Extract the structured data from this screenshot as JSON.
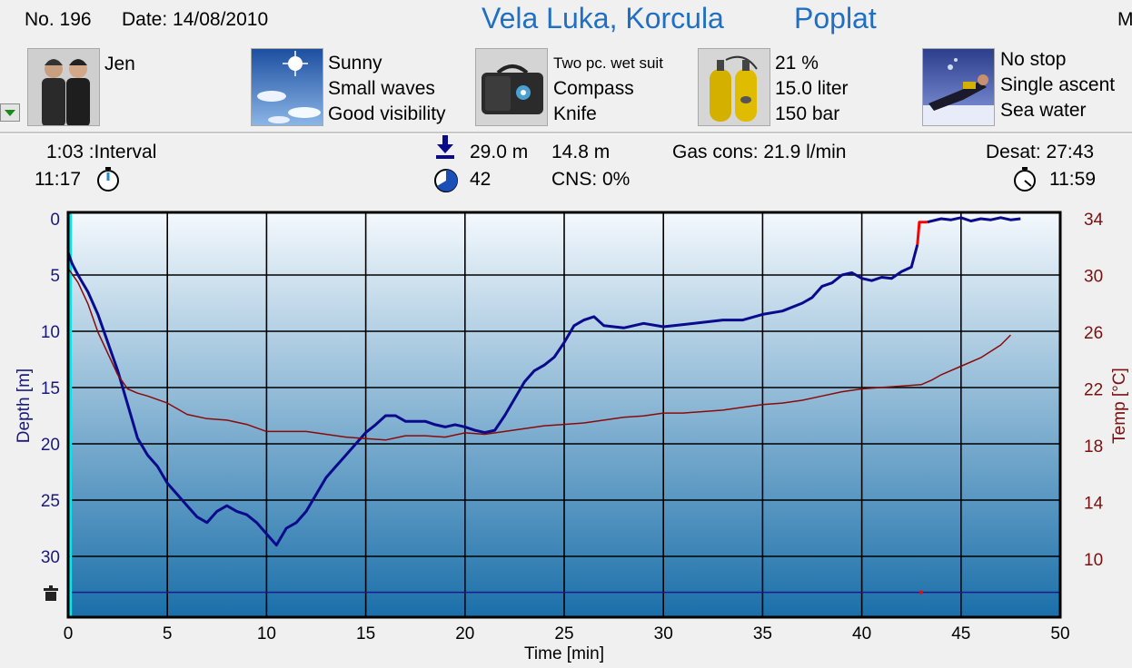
{
  "header": {
    "dive_no": "No. 196",
    "date": "Date: 14/08/2010",
    "location": "Vela Luka, Korcula",
    "site": "Poplat",
    "cut_off": "M"
  },
  "info": {
    "buddy": {
      "icon": "divers-icon",
      "lines": [
        "Jen"
      ]
    },
    "conditions": {
      "icon": "weather-icon",
      "lines": [
        "Sunny",
        "Small waves",
        "Good visibility"
      ]
    },
    "equipment": {
      "icon": "gear-bag-icon",
      "lines": [
        "Two pc. wet suit",
        "Compass",
        "Knife"
      ]
    },
    "gas": {
      "icon": "tanks-icon",
      "lines": [
        "21 %",
        "15.0 liter",
        "150 bar"
      ]
    },
    "dive_type": {
      "icon": "diver-icon",
      "lines": [
        "No stop",
        "Single ascent",
        "Sea water"
      ]
    }
  },
  "stats": {
    "interval": "1:03 :Interval",
    "entry_time": "11:17",
    "max_depth": "29.0 m",
    "avg_depth": "14.8 m",
    "gas_cons": "Gas cons: 21.9 l/min",
    "desat": "Desat:  27:43",
    "dive_time": "42",
    "cns": "CNS:  0%",
    "exit_time": "11:59"
  },
  "colors": {
    "depth": "#0a0a8c",
    "temp": "#8a0a0a",
    "ascent_warning": "#ff0000",
    "surface_marker": "#00e8f0",
    "header_blue": "#1f6fc4",
    "plot_top": "#f4f9fd",
    "plot_bottom": "#1a6fa9"
  },
  "chart_data": {
    "type": "line",
    "xlabel": "Time [min]",
    "ylabel": "Depth [m]",
    "y2label": "Temp [°C]",
    "xlim": [
      0,
      50
    ],
    "ylim": [
      0,
      33
    ],
    "y2lim": [
      6,
      34
    ],
    "x_ticks": [
      "0",
      "5",
      "10",
      "15",
      "20",
      "25",
      "30",
      "35",
      "40",
      "45",
      "50"
    ],
    "y_ticks": [
      "0",
      "5",
      "10",
      "15",
      "20",
      "25",
      "30"
    ],
    "y2_ticks": [
      "34",
      "30",
      "26",
      "22",
      "18",
      "14",
      "10"
    ],
    "grid": true,
    "series": [
      {
        "name": "Depth",
        "axis": "left",
        "x": [
          0,
          0.2,
          0.5,
          1,
          1.5,
          2,
          2.5,
          3,
          3.5,
          4,
          4.5,
          5,
          5.5,
          6,
          6.5,
          7,
          7.5,
          8,
          8.5,
          9,
          9.5,
          10,
          10.5,
          11,
          11.5,
          12,
          12.5,
          13,
          13.5,
          14,
          14.5,
          15,
          15.5,
          16,
          16.5,
          17,
          17.5,
          18,
          18.5,
          19,
          19.5,
          20,
          20.5,
          21,
          21.5,
          22,
          22.5,
          23,
          23.5,
          24,
          24.5,
          25,
          25.5,
          26,
          26.5,
          27,
          28,
          29,
          30,
          31,
          32,
          33,
          34,
          35,
          36,
          37,
          37.5,
          38,
          38.5,
          39,
          39.5,
          40,
          40.5,
          41,
          41.5,
          42,
          42.5,
          42.8
        ],
        "y": [
          3,
          4,
          5,
          6.5,
          8.5,
          11,
          13.5,
          16.5,
          19.5,
          21,
          22,
          23.5,
          24.5,
          25.5,
          26.5,
          27,
          26,
          25.5,
          26,
          26.3,
          27,
          28,
          29,
          27.5,
          27,
          26,
          24.5,
          23,
          22,
          21,
          20,
          19,
          18.3,
          17.5,
          17.5,
          18,
          18,
          18,
          18.3,
          18.5,
          18.3,
          18.5,
          18.8,
          19,
          18.8,
          17.5,
          16,
          14.5,
          13.5,
          13,
          12.3,
          11,
          9.5,
          9,
          8.7,
          9.5,
          9.7,
          9.3,
          9.6,
          9.4,
          9.2,
          9,
          9,
          8.5,
          8.2,
          7.5,
          7,
          6,
          5.7,
          5,
          4.8,
          5.3,
          5.5,
          5.2,
          5.3,
          4.7,
          4.3,
          2.3
        ]
      },
      {
        "name": "Ascent warning",
        "axis": "left",
        "x": [
          42.8,
          42.9,
          43.3
        ],
        "y": [
          2.3,
          0.3,
          0.3
        ]
      },
      {
        "name": "Surface",
        "axis": "left",
        "x": [
          43.3,
          44,
          44.5,
          45,
          45.5,
          46,
          46.5,
          47,
          47.5,
          48
        ],
        "y": [
          0.3,
          0,
          0.1,
          -0.1,
          0.2,
          0,
          0.1,
          -0.1,
          0.1,
          0
        ]
      },
      {
        "name": "Temperature",
        "axis": "right",
        "x": [
          0,
          0.5,
          1,
          1.5,
          2,
          2.5,
          3,
          3.5,
          4,
          5,
          6,
          7,
          8,
          9,
          10,
          11,
          12,
          13,
          14,
          15,
          16,
          17,
          18,
          19,
          20,
          21,
          22,
          23,
          24,
          25,
          26,
          27,
          28,
          29,
          30,
          31,
          32,
          33,
          34,
          35,
          36,
          37,
          38,
          39,
          40,
          41,
          42,
          43,
          43.5,
          44,
          45,
          46,
          47,
          47.5
        ],
        "y": [
          30.5,
          29.5,
          28,
          26,
          24.5,
          23,
          22,
          21.7,
          21.5,
          21,
          20.2,
          19.9,
          19.8,
          19.5,
          19,
          19,
          19,
          18.8,
          18.6,
          18.5,
          18.4,
          18.7,
          18.7,
          18.6,
          18.9,
          18.8,
          19,
          19.2,
          19.4,
          19.5,
          19.6,
          19.8,
          20,
          20.1,
          20.3,
          20.3,
          20.4,
          20.5,
          20.7,
          20.9,
          21,
          21.2,
          21.5,
          21.8,
          22,
          22.1,
          22.2,
          22.3,
          22.6,
          23,
          23.6,
          24.2,
          25.1,
          25.8
        ]
      }
    ]
  }
}
